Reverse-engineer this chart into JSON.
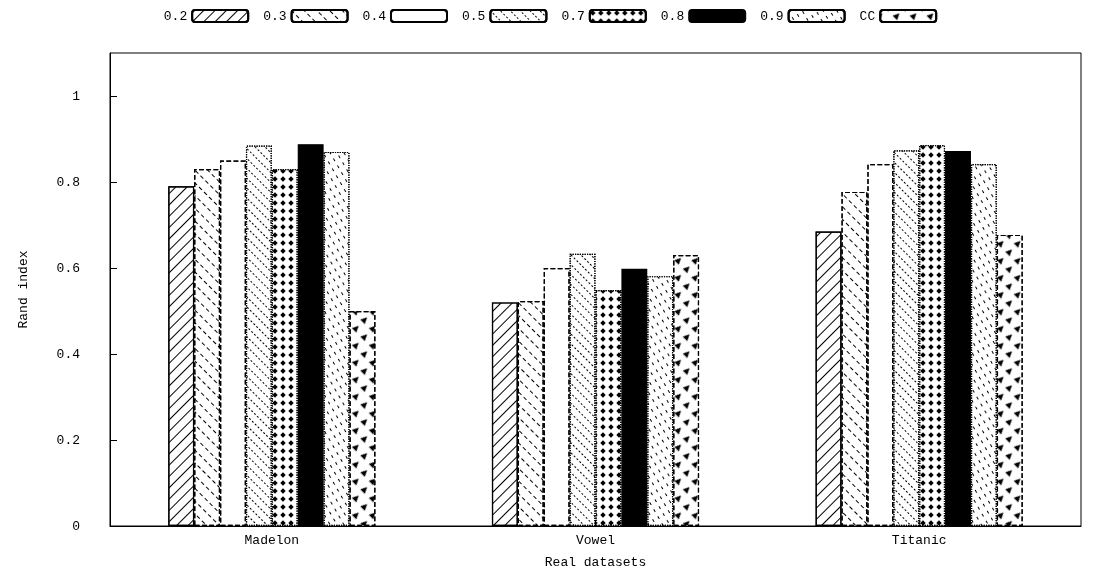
{
  "chart_data": {
    "type": "bar",
    "xlabel": "Real datasets",
    "ylabel": "Rand index",
    "categories": [
      "Madelon",
      "Vowel",
      "Titanic"
    ],
    "series": [
      {
        "name": "0.2",
        "color": "#ffffff",
        "values": [
          0.79,
          0.52,
          0.685
        ]
      },
      {
        "name": "0.3",
        "color": "#ffffff",
        "values": [
          0.83,
          0.523,
          0.777
        ]
      },
      {
        "name": "0.4",
        "color": "#ffffff",
        "values": [
          0.85,
          0.6,
          0.842
        ]
      },
      {
        "name": "0.5",
        "color": "#ffffff",
        "values": [
          0.885,
          0.633,
          0.874
        ]
      },
      {
        "name": "0.7",
        "color": "#ffffff",
        "values": [
          0.83,
          0.549,
          0.886
        ]
      },
      {
        "name": "0.8",
        "color": "#000000",
        "values": [
          0.888,
          0.598,
          0.872
        ]
      },
      {
        "name": "0.9",
        "color": "#ffffff",
        "values": [
          0.87,
          0.581,
          0.842
        ]
      },
      {
        "name": "CC",
        "color": "#ffffff",
        "values": [
          0.5,
          0.63,
          0.677
        ]
      }
    ],
    "ylim": [
      0,
      1.1
    ],
    "yticks": [
      0,
      0.2,
      0.4,
      0.6,
      0.8,
      1
    ],
    "grid": false,
    "legend": "top"
  }
}
